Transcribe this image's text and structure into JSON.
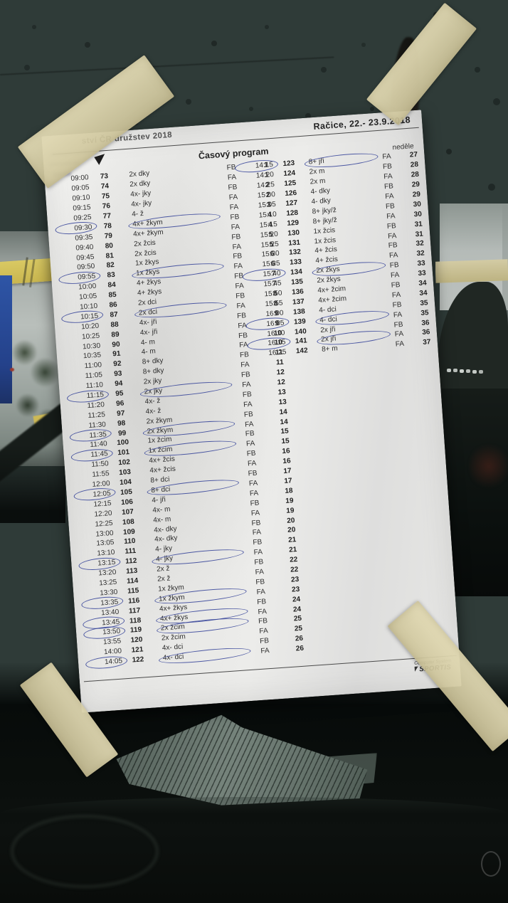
{
  "colors": {
    "pen_blue": "#303e96",
    "tape_beige": "#d9d0a4",
    "paper_white": "#ebebe9",
    "glass_dark": "#3c4845"
  },
  "header": {
    "title_fragment": "ství ČR družstev 2018",
    "location_date": "Račice,  22.- 23.9.2018",
    "program_title": "Časový program",
    "day_label": "neděle"
  },
  "footer": {
    "line1": "Computer System",
    "line2": "SPORTIS"
  },
  "schedule": {
    "columns": [
      "time",
      "race_no",
      "boat_class",
      "final",
      "heat_no"
    ],
    "left_column": [
      {
        "time": "09:00",
        "no": "73",
        "boat": "2x dky",
        "final": "FB",
        "heat": "1"
      },
      {
        "time": "09:05",
        "no": "74",
        "boat": "2x dky",
        "final": "FA",
        "heat": "1"
      },
      {
        "time": "09:10",
        "no": "75",
        "boat": "4x- jky",
        "final": "FB",
        "heat": "2"
      },
      {
        "time": "09:15",
        "no": "76",
        "boat": "4x- jky",
        "final": "FA",
        "heat": "2"
      },
      {
        "time": "09:25",
        "no": "77",
        "boat": "4- ž",
        "final": "FA",
        "heat": "3"
      },
      {
        "time": "09:30",
        "no": "78",
        "boat": "4x+ žkym",
        "final": "FB",
        "heat": "4",
        "circled_time": true,
        "circled_boat": true
      },
      {
        "time": "09:35",
        "no": "79",
        "boat": "4x+ žkym",
        "final": "FA",
        "heat": "4"
      },
      {
        "time": "09:40",
        "no": "80",
        "boat": "2x žcis",
        "final": "FB",
        "heat": "5"
      },
      {
        "time": "09:45",
        "no": "81",
        "boat": "2x žcis",
        "final": "FA",
        "heat": "5"
      },
      {
        "time": "09:50",
        "no": "82",
        "boat": "1x žkys",
        "final": "FB",
        "heat": "6"
      },
      {
        "time": "09:55",
        "no": "83",
        "boat": "1x žkys",
        "final": "FA",
        "heat": "6",
        "circled_time": true,
        "circled_boat": true
      },
      {
        "time": "10:00",
        "no": "84",
        "boat": "4+ žkys",
        "final": "FB",
        "heat": "7"
      },
      {
        "time": "10:05",
        "no": "85",
        "boat": "4+ žkys",
        "final": "FA",
        "heat": "7"
      },
      {
        "time": "10:10",
        "no": "86",
        "boat": "2x dci",
        "final": "FB",
        "heat": "8"
      },
      {
        "time": "10:15",
        "no": "87",
        "boat": "2x dci",
        "final": "FA",
        "heat": "8",
        "circled_time": true,
        "circled_boat": true
      },
      {
        "time": "10:20",
        "no": "88",
        "boat": "4x- jři",
        "final": "FB",
        "heat": "9"
      },
      {
        "time": "10:25",
        "no": "89",
        "boat": "4x- jři",
        "final": "FA",
        "heat": "9"
      },
      {
        "time": "10:30",
        "no": "90",
        "boat": "4- m",
        "final": "FB",
        "heat": "10"
      },
      {
        "time": "10:35",
        "no": "91",
        "boat": "4- m",
        "final": "FA",
        "heat": "10"
      },
      {
        "time": "11:00",
        "no": "92",
        "boat": "8+ dky",
        "final": "FB",
        "heat": "11"
      },
      {
        "time": "11:05",
        "no": "93",
        "boat": "8+ dky",
        "final": "FA",
        "heat": "11"
      },
      {
        "time": "11:10",
        "no": "94",
        "boat": "2x jky",
        "final": "FB",
        "heat": "12"
      },
      {
        "time": "11:15",
        "no": "95",
        "boat": "2x jky",
        "final": "FA",
        "heat": "12",
        "circled_time": true,
        "circled_boat": true
      },
      {
        "time": "11:20",
        "no": "96",
        "boat": "4x- ž",
        "final": "FB",
        "heat": "13"
      },
      {
        "time": "11:25",
        "no": "97",
        "boat": "4x- ž",
        "final": "FA",
        "heat": "13"
      },
      {
        "time": "11:30",
        "no": "98",
        "boat": "2x žkym",
        "final": "FB",
        "heat": "14"
      },
      {
        "time": "11:35",
        "no": "99",
        "boat": "2x žkym",
        "final": "FA",
        "heat": "14",
        "circled_time": true,
        "circled_boat": true
      },
      {
        "time": "11:40",
        "no": "100",
        "boat": "1x žcim",
        "final": "FB",
        "heat": "15"
      },
      {
        "time": "11:45",
        "no": "101",
        "boat": "1x žcim",
        "final": "FA",
        "heat": "15",
        "circled_time": true,
        "circled_boat": true
      },
      {
        "time": "11:50",
        "no": "102",
        "boat": "4x+ žcis",
        "final": "FB",
        "heat": "16"
      },
      {
        "time": "11:55",
        "no": "103",
        "boat": "4x+ žcis",
        "final": "FA",
        "heat": "16"
      },
      {
        "time": "12:00",
        "no": "104",
        "boat": "8+ dci",
        "final": "FB",
        "heat": "17"
      },
      {
        "time": "12:05",
        "no": "105",
        "boat": "8+ dci",
        "final": "FA",
        "heat": "17",
        "circled_time": true,
        "circled_boat": true
      },
      {
        "time": "12:15",
        "no": "106",
        "boat": "4- jři",
        "final": "FA",
        "heat": "18"
      },
      {
        "time": "12:20",
        "no": "107",
        "boat": "4x- m",
        "final": "FB",
        "heat": "19"
      },
      {
        "time": "12:25",
        "no": "108",
        "boat": "4x- m",
        "final": "FA",
        "heat": "19"
      },
      {
        "time": "13:00",
        "no": "109",
        "boat": "4x- dky",
        "final": "FB",
        "heat": "20"
      },
      {
        "time": "13:05",
        "no": "110",
        "boat": "4x- dky",
        "final": "FA",
        "heat": "20"
      },
      {
        "time": "13:10",
        "no": "111",
        "boat": "4- jky",
        "final": "FB",
        "heat": "21"
      },
      {
        "time": "13:15",
        "no": "112",
        "boat": "4- jky",
        "final": "FA",
        "heat": "21",
        "circled_time": true,
        "circled_boat": true
      },
      {
        "time": "13:20",
        "no": "113",
        "boat": "2x ž",
        "final": "FB",
        "heat": "22"
      },
      {
        "time": "13:25",
        "no": "114",
        "boat": "2x ž",
        "final": "FA",
        "heat": "22"
      },
      {
        "time": "13:30",
        "no": "115",
        "boat": "1x žkym",
        "final": "FB",
        "heat": "23"
      },
      {
        "time": "13:35",
        "no": "116",
        "boat": "1x žkym",
        "final": "FA",
        "heat": "23",
        "circled_time": true,
        "circled_boat": true
      },
      {
        "time": "13:40",
        "no": "117",
        "boat": "4x+ žkys",
        "final": "FB",
        "heat": "24"
      },
      {
        "time": "13:45",
        "no": "118",
        "boat": "4x+ žkys",
        "final": "FA",
        "heat": "24",
        "circled_time": true,
        "circled_boat": true
      },
      {
        "time": "13:50",
        "no": "119",
        "boat": "2x žcim",
        "final": "FB",
        "heat": "25",
        "circled_time": true,
        "circled_boat": true
      },
      {
        "time": "13:55",
        "no": "120",
        "boat": "2x žcim",
        "final": "FA",
        "heat": "25"
      },
      {
        "time": "14:00",
        "no": "121",
        "boat": "4x- dci",
        "final": "FB",
        "heat": "26"
      },
      {
        "time": "14:05",
        "no": "122",
        "boat": "4x- dci",
        "final": "FA",
        "heat": "26",
        "circled_time": true,
        "circled_boat": true
      }
    ],
    "right_column": [
      {
        "time": "14:15",
        "no": "123",
        "boat": "8+ jři",
        "final": "FA",
        "heat": "27",
        "circled_time": true,
        "circled_boat": true
      },
      {
        "time": "14:20",
        "no": "124",
        "boat": "2x m",
        "final": "FB",
        "heat": "28"
      },
      {
        "time": "14:25",
        "no": "125",
        "boat": "2x m",
        "final": "FA",
        "heat": "28"
      },
      {
        "time": "15:00",
        "no": "126",
        "boat": "4- dky",
        "final": "FB",
        "heat": "29"
      },
      {
        "time": "15:05",
        "no": "127",
        "boat": "4- dky",
        "final": "FA",
        "heat": "29"
      },
      {
        "time": "15:10",
        "no": "128",
        "boat": "8+ jky/ž",
        "final": "FB",
        "heat": "30"
      },
      {
        "time": "15:15",
        "no": "129",
        "boat": "8+ jky/ž",
        "final": "FA",
        "heat": "30"
      },
      {
        "time": "15:20",
        "no": "130",
        "boat": "1x žcis",
        "final": "FB",
        "heat": "31"
      },
      {
        "time": "15:25",
        "no": "131",
        "boat": "1x žcis",
        "final": "FA",
        "heat": "31"
      },
      {
        "time": "15:30",
        "no": "132",
        "boat": "4+ žcis",
        "final": "FB",
        "heat": "32"
      },
      {
        "time": "15:35",
        "no": "133",
        "boat": "4+ žcis",
        "final": "FA",
        "heat": "32"
      },
      {
        "time": "15:40",
        "no": "134",
        "boat": "2x žkys",
        "final": "FB",
        "heat": "33",
        "circled_time": true,
        "circled_boat": true
      },
      {
        "time": "15:45",
        "no": "135",
        "boat": "2x žkys",
        "final": "FA",
        "heat": "33"
      },
      {
        "time": "15:50",
        "no": "136",
        "boat": "4x+ žcim",
        "final": "FB",
        "heat": "34"
      },
      {
        "time": "15:55",
        "no": "137",
        "boat": "4x+ žcim",
        "final": "FA",
        "heat": "34"
      },
      {
        "time": "16:00",
        "no": "138",
        "boat": "4- dci",
        "final": "FB",
        "heat": "35"
      },
      {
        "time": "16:05",
        "no": "139",
        "boat": "4- dci",
        "final": "FA",
        "heat": "35",
        "circled_time": true,
        "circled_boat": true
      },
      {
        "time": "16:10",
        "no": "140",
        "boat": "2x jři",
        "final": "FB",
        "heat": "36"
      },
      {
        "time": "16:15",
        "no": "141",
        "boat": "2x jři",
        "final": "FA",
        "heat": "36",
        "circled_time": true,
        "circled_boat": true
      },
      {
        "time": "16:25",
        "no": "142",
        "boat": "8+ m",
        "final": "FA",
        "heat": "37"
      }
    ]
  }
}
